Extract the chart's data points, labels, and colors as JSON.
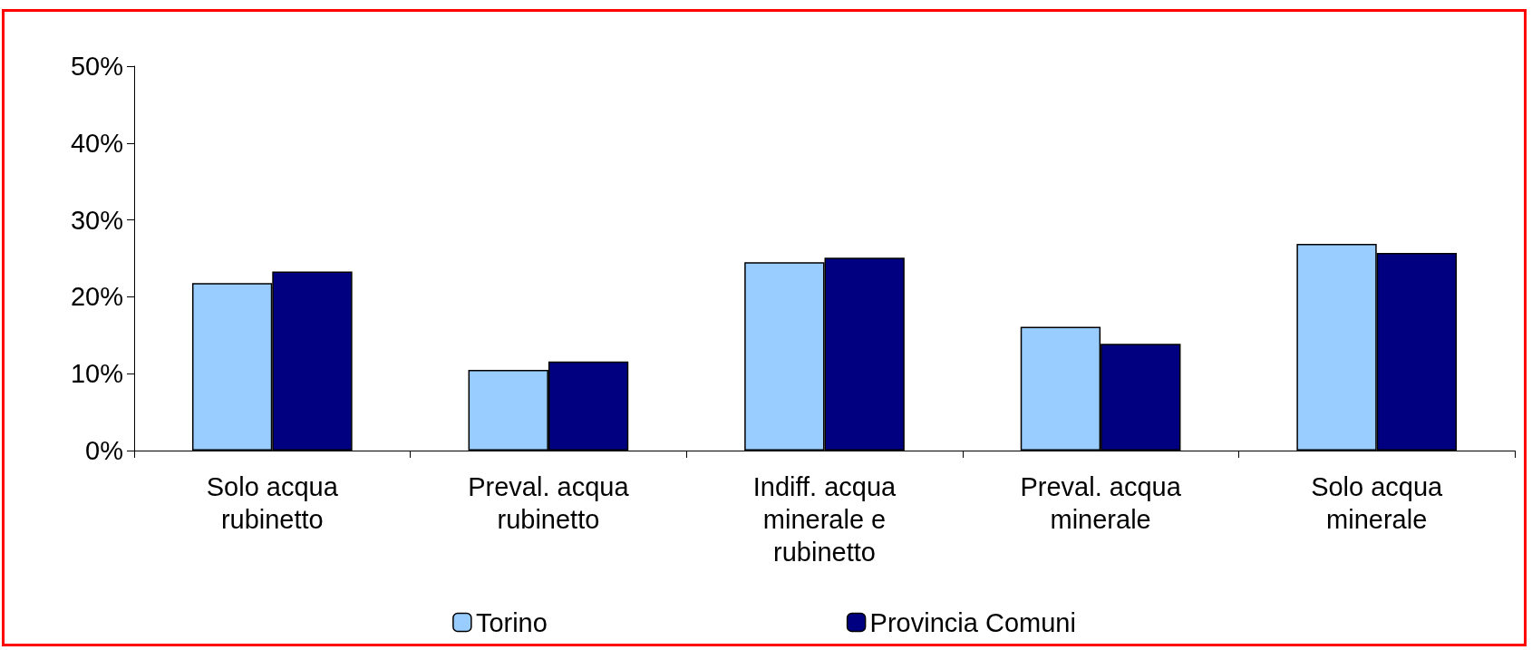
{
  "chart_data": {
    "type": "bar",
    "categories": [
      "Solo acqua\nrubinetto",
      "Preval. acqua\nrubinetto",
      "Indiff. acqua\nminerale e\nrubinetto",
      "Preval. acqua\nminerale",
      "Solo acqua\nminerale"
    ],
    "series": [
      {
        "name": "Torino",
        "color": "#99ccff",
        "values": [
          21.8,
          10.5,
          24.5,
          16.1,
          26.9
        ]
      },
      {
        "name": "Provincia Comuni",
        "color": "#000080",
        "values": [
          23.3,
          11.6,
          25.1,
          13.9,
          25.7
        ]
      }
    ],
    "ylim": [
      0,
      50
    ],
    "yticks": [
      {
        "value": 0,
        "label": "0%"
      },
      {
        "value": 10,
        "label": "10%"
      },
      {
        "value": 20,
        "label": "20%"
      },
      {
        "value": 30,
        "label": "30%"
      },
      {
        "value": 40,
        "label": "40%"
      },
      {
        "value": 50,
        "label": "50%"
      }
    ],
    "grid": false,
    "legend": "bottom"
  }
}
